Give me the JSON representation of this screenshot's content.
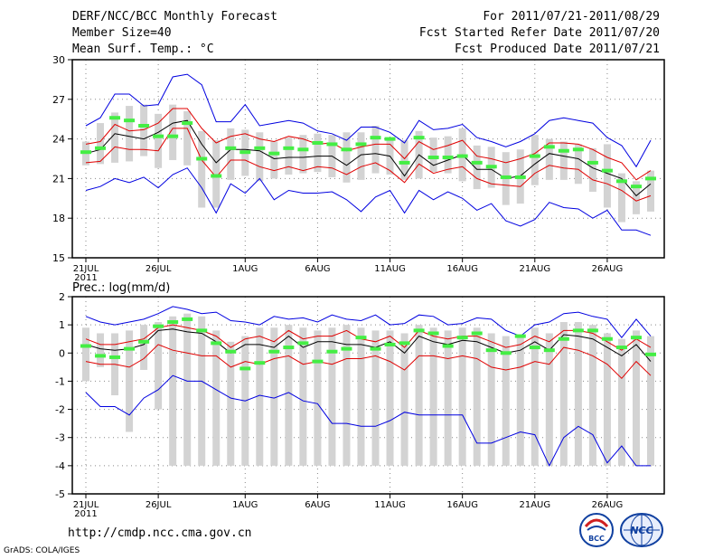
{
  "header": {
    "title": "DERF/NCC/BCC Monthly Forecast",
    "member_size": "Member Size=40",
    "variable": "Mean Surf. Temp.: °C",
    "period": "For 2011/07/21-2011/08/29",
    "refer_date": "Fcst Started Refer Date 2011/07/20",
    "produced_date": "Fcst Produced Date 2011/07/21"
  },
  "footer": {
    "url": "http://cmdp.ncc.cma.gov.cn",
    "credit": "GrADS: COLA/IGES",
    "logo_left": "BCC",
    "logo_right": "NCC"
  },
  "colors": {
    "envelope": "#0000e0",
    "quantile": "#e00000",
    "mean": "#000000",
    "median": "#44ee44",
    "box": "#d3d3d3",
    "grid": "#888888"
  },
  "chart_data": [
    {
      "type": "box-ensemble",
      "title": "",
      "ylabel": "Mean Surf. Temp.: °C",
      "ylim": [
        15,
        30
      ],
      "yticks": [
        "30",
        "27",
        "24",
        "21",
        "18",
        "15"
      ],
      "xticks": [
        {
          "day": 1,
          "label": "21JUL",
          "sub": "2011"
        },
        {
          "day": 6,
          "label": "26JUL"
        },
        {
          "day": 12,
          "label": "1AUG"
        },
        {
          "day": 17,
          "label": "6AUG"
        },
        {
          "day": 22,
          "label": "11AUG"
        },
        {
          "day": 27,
          "label": "16AUG"
        },
        {
          "day": 32,
          "label": "21AUG"
        },
        {
          "day": 37,
          "label": "26AUG"
        }
      ],
      "days": 40,
      "max": [
        25.0,
        25.6,
        27.4,
        27.4,
        26.5,
        26.6,
        28.7,
        28.9,
        28.1,
        25.3,
        25.3,
        26.6,
        25.0,
        25.2,
        25.4,
        25.2,
        24.6,
        24.4,
        23.9,
        24.9,
        24.9,
        24.5,
        23.7,
        25.4,
        24.7,
        24.8,
        25.1,
        24.1,
        23.8,
        23.4,
        23.8,
        24.4,
        25.4,
        25.6,
        25.4,
        25.2,
        24.1,
        23.5,
        21.9,
        23.9
      ],
      "p75": [
        23.6,
        23.8,
        25.1,
        24.6,
        24.7,
        25.2,
        26.3,
        26.3,
        24.8,
        23.7,
        24.2,
        24.4,
        24.0,
        23.8,
        24.2,
        24.0,
        23.6,
        23.7,
        23.1,
        23.4,
        23.6,
        23.6,
        22.5,
        23.8,
        23.2,
        23.5,
        23.9,
        22.7,
        22.5,
        22.2,
        22.5,
        22.9,
        23.7,
        23.7,
        23.6,
        23.2,
        22.6,
        22.2,
        20.9,
        21.6
      ],
      "mean": [
        22.9,
        23.2,
        24.4,
        24.2,
        24.0,
        24.5,
        25.2,
        25.4,
        23.6,
        22.2,
        23.2,
        23.2,
        23.1,
        22.5,
        22.6,
        22.6,
        22.7,
        22.7,
        22.0,
        22.8,
        22.9,
        22.7,
        21.2,
        22.8,
        22.0,
        22.4,
        22.8,
        21.7,
        21.7,
        21.0,
        21.2,
        22.1,
        22.9,
        22.7,
        22.5,
        21.8,
        21.4,
        21.0,
        19.7,
        20.6
      ],
      "p25": [
        22.2,
        22.3,
        23.4,
        23.2,
        23.2,
        23.1,
        24.8,
        24.8,
        22.4,
        21.1,
        22.4,
        22.4,
        21.9,
        21.6,
        21.9,
        21.6,
        21.9,
        21.8,
        21.3,
        21.9,
        22.2,
        21.6,
        20.7,
        22.1,
        21.4,
        21.7,
        21.9,
        21.0,
        20.6,
        20.5,
        20.4,
        21.4,
        22.0,
        21.8,
        21.7,
        20.9,
        20.6,
        20.1,
        19.3,
        19.7
      ],
      "min": [
        20.1,
        20.4,
        21.0,
        20.7,
        21.1,
        20.3,
        21.3,
        21.8,
        20.3,
        18.4,
        20.6,
        19.9,
        21.0,
        19.4,
        20.1,
        19.9,
        19.9,
        20.0,
        19.4,
        18.5,
        19.6,
        20.1,
        18.4,
        20.1,
        19.4,
        20.0,
        19.5,
        18.6,
        19.1,
        17.8,
        17.4,
        17.9,
        19.2,
        18.8,
        18.7,
        18.0,
        18.6,
        17.1,
        17.1,
        16.7
      ],
      "box_lo": [
        22.0,
        22.1,
        22.2,
        22.3,
        22.7,
        21.8,
        22.4,
        22.0,
        18.8,
        18.8,
        20.9,
        21.2,
        20.8,
        21.0,
        21.3,
        21.4,
        21.5,
        21.1,
        20.7,
        20.9,
        21.4,
        21.3,
        20.9,
        21.0,
        21.5,
        21.4,
        20.8,
        20.2,
        20.3,
        19.0,
        19.1,
        20.5,
        20.9,
        20.9,
        20.6,
        20.0,
        18.8,
        17.7,
        18.3,
        18.5
      ],
      "box_hi": [
        23.8,
        25.2,
        26.0,
        26.5,
        26.6,
        25.9,
        26.6,
        26.1,
        24.6,
        23.9,
        24.8,
        24.7,
        24.5,
        23.8,
        24.1,
        24.3,
        24.4,
        24.3,
        24.5,
        24.5,
        25.0,
        24.1,
        23.9,
        24.6,
        24.1,
        24.2,
        24.8,
        23.5,
        23.4,
        23.0,
        23.2,
        24.3,
        24.0,
        23.8,
        23.6,
        23.3,
        23.6,
        21.4,
        20.8,
        21.6
      ],
      "median": [
        23.0,
        23.3,
        25.6,
        25.4,
        25.0,
        24.2,
        24.2,
        25.2,
        22.5,
        21.2,
        23.3,
        23.0,
        23.3,
        22.9,
        23.3,
        23.2,
        23.7,
        23.6,
        23.2,
        23.6,
        24.1,
        24.0,
        22.2,
        24.1,
        22.6,
        22.6,
        22.7,
        22.2,
        21.9,
        21.1,
        21.1,
        22.7,
        23.4,
        23.1,
        23.2,
        22.2,
        21.6,
        20.8,
        20.4,
        21.0
      ]
    },
    {
      "type": "box-ensemble",
      "title": "Prec.: log(mm/d)",
      "ylabel": "Prec.: log(mm/d)",
      "ylim": [
        -5,
        2
      ],
      "yticks": [
        "2",
        "1",
        "0",
        "-1",
        "-2",
        "-3",
        "-4",
        "-5"
      ],
      "xticks": [
        {
          "day": 1,
          "label": "21JUL",
          "sub": "2011"
        },
        {
          "day": 6,
          "label": "26JUL"
        },
        {
          "day": 12,
          "label": "1AUG"
        },
        {
          "day": 17,
          "label": "6AUG"
        },
        {
          "day": 22,
          "label": "11AUG"
        },
        {
          "day": 27,
          "label": "16AUG"
        },
        {
          "day": 32,
          "label": "21AUG"
        },
        {
          "day": 37,
          "label": "26AUG"
        }
      ],
      "days": 40,
      "max": [
        1.3,
        1.1,
        1.0,
        1.1,
        1.2,
        1.4,
        1.65,
        1.55,
        1.4,
        1.45,
        1.15,
        1.1,
        1.0,
        1.3,
        1.2,
        1.25,
        1.1,
        1.35,
        1.2,
        1.15,
        1.35,
        1.0,
        1.05,
        1.35,
        1.3,
        1.0,
        1.05,
        1.25,
        1.2,
        0.8,
        0.6,
        1.0,
        1.1,
        1.4,
        1.45,
        1.3,
        1.2,
        0.55,
        1.2,
        0.6
      ],
      "p75": [
        0.5,
        0.3,
        0.3,
        0.4,
        0.5,
        0.9,
        1.0,
        0.9,
        0.8,
        0.6,
        0.2,
        0.5,
        0.6,
        0.4,
        0.8,
        0.5,
        0.6,
        0.6,
        0.8,
        0.5,
        0.4,
        0.6,
        0.2,
        0.8,
        0.6,
        0.5,
        0.6,
        0.6,
        0.4,
        0.2,
        0.3,
        0.6,
        0.4,
        0.8,
        0.8,
        0.7,
        0.4,
        0.1,
        0.5,
        0.2
      ],
      "mean": [
        0.3,
        0.15,
        0.1,
        0.15,
        0.3,
        0.8,
        0.85,
        0.75,
        0.7,
        0.4,
        0.0,
        0.3,
        0.3,
        0.2,
        0.6,
        0.2,
        0.4,
        0.4,
        0.3,
        0.3,
        0.2,
        0.4,
        0.0,
        0.6,
        0.4,
        0.3,
        0.45,
        0.4,
        0.2,
        0.0,
        0.1,
        0.4,
        0.1,
        0.65,
        0.6,
        0.5,
        0.2,
        -0.1,
        0.3,
        -0.3
      ],
      "p25": [
        -0.3,
        -0.4,
        -0.4,
        -0.5,
        -0.2,
        0.3,
        0.1,
        0.0,
        -0.1,
        -0.1,
        -0.5,
        -0.3,
        -0.4,
        -0.2,
        -0.1,
        -0.4,
        -0.3,
        -0.4,
        -0.2,
        -0.2,
        -0.1,
        -0.3,
        -0.6,
        -0.1,
        -0.1,
        -0.2,
        -0.1,
        -0.2,
        -0.5,
        -0.6,
        -0.5,
        -0.3,
        -0.4,
        0.2,
        0.1,
        -0.1,
        -0.4,
        -0.9,
        -0.3,
        -0.8
      ],
      "min": [
        -1.4,
        -1.9,
        -1.9,
        -2.2,
        -1.6,
        -1.3,
        -0.8,
        -1.0,
        -1.0,
        -1.3,
        -1.6,
        -1.7,
        -1.5,
        -1.6,
        -1.4,
        -1.7,
        -1.8,
        -2.5,
        -2.5,
        -2.6,
        -2.6,
        -2.4,
        -2.1,
        -2.2,
        -2.2,
        -2.2,
        -2.2,
        -3.2,
        -3.2,
        -3.0,
        -2.8,
        -2.9,
        -4.0,
        -3.0,
        -2.6,
        -2.9,
        -3.9,
        -3.3,
        -4.0,
        -4.0
      ],
      "box_lo": [
        -1.0,
        -0.5,
        -1.5,
        -2.8,
        -0.6,
        -2.0,
        -4.0,
        -4.0,
        -4.0,
        -4.0,
        -4.0,
        -4.0,
        -4.0,
        -4.0,
        -4.0,
        -4.0,
        -4.0,
        -4.0,
        -4.0,
        -4.0,
        -4.0,
        -4.0,
        -4.0,
        -4.0,
        -4.0,
        -4.0,
        -4.0,
        -4.0,
        -4.0,
        -4.0,
        -4.0,
        -4.0,
        -4.0,
        -4.0,
        -4.0,
        -4.0,
        -4.0,
        -4.0,
        -4.0,
        -4.0
      ],
      "box_hi": [
        0.9,
        0.7,
        0.7,
        0.8,
        1.0,
        1.1,
        1.3,
        1.4,
        1.3,
        0.8,
        0.4,
        0.6,
        0.9,
        0.9,
        1.0,
        0.9,
        0.8,
        0.9,
        1.0,
        0.9,
        0.8,
        0.8,
        0.7,
        1.0,
        0.9,
        0.8,
        0.9,
        0.9,
        0.7,
        0.6,
        0.6,
        0.9,
        0.7,
        1.1,
        1.1,
        1.0,
        0.7,
        0.5,
        0.8,
        0.6
      ],
      "median": [
        0.25,
        -0.1,
        -0.15,
        0.15,
        0.4,
        0.95,
        1.1,
        1.2,
        0.8,
        0.35,
        0.05,
        -0.55,
        -0.35,
        0.05,
        0.2,
        0.35,
        -0.3,
        0.05,
        0.15,
        0.55,
        0.15,
        0.3,
        0.35,
        0.8,
        0.7,
        0.25,
        0.55,
        0.7,
        0.1,
        0.0,
        0.6,
        0.2,
        0.1,
        0.5,
        0.8,
        0.8,
        0.5,
        0.2,
        0.55,
        -0.05
      ]
    }
  ]
}
